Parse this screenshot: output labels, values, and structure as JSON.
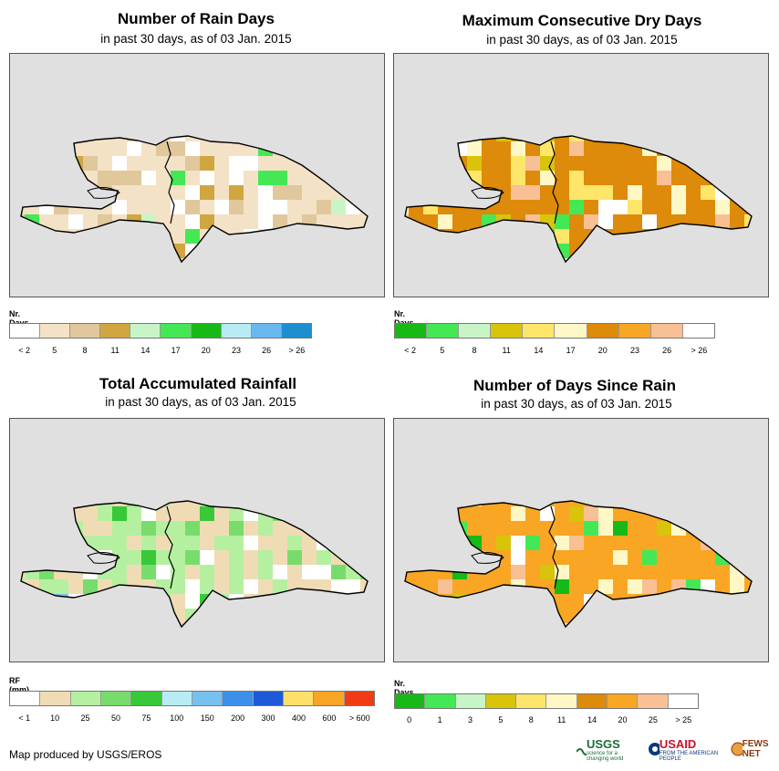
{
  "panels": [
    {
      "title": "Number of Rain Days",
      "subtitle": "in past 30 days, as of 03 Jan. 2015",
      "legend_unit": "Nr. Days",
      "legend_colors": [
        "#ffffff",
        "#f4e2c6",
        "#e0c79c",
        "#d0a640",
        "#c8f5c8",
        "#44e855",
        "#17b917",
        "#b8ecf4",
        "#6ab8f0",
        "#1d8fd0"
      ],
      "legend_labels": [
        "< 2",
        "5",
        "8",
        "11",
        "14",
        "17",
        "20",
        "23",
        "26",
        "> 26"
      ],
      "palette_key": "rain"
    },
    {
      "title": "Maximum Consecutive Dry Days",
      "subtitle": "in past 30 days, as of 03 Jan. 2015",
      "legend_unit": "Nr. Days",
      "legend_colors": [
        "#17b917",
        "#44e855",
        "#c8f5c8",
        "#d8c40a",
        "#fde66a",
        "#fff8c6",
        "#de8a0a",
        "#f8a624",
        "#f8c094",
        "#ffffff"
      ],
      "legend_labels": [
        "< 2",
        "5",
        "8",
        "11",
        "14",
        "17",
        "20",
        "23",
        "26",
        "> 26"
      ],
      "palette_key": "dry"
    },
    {
      "title": "Total Accumulated Rainfall",
      "subtitle": "in past 30 days, as of 03 Jan. 2015",
      "legend_unit": "RF (mm)",
      "legend_colors": [
        "#ffffff",
        "#f0dcb4",
        "#b4f0a0",
        "#78dc6c",
        "#38c838",
        "#b8ecf4",
        "#78c0f0",
        "#3c90e8",
        "#1e5ad8",
        "#fde06a",
        "#f8a424",
        "#f03c14"
      ],
      "legend_labels": [
        "< 1",
        "10",
        "25",
        "50",
        "75",
        "100",
        "150",
        "200",
        "300",
        "400",
        "600",
        "> 600"
      ],
      "palette_key": "rf"
    },
    {
      "title": "Number of Days Since Rain",
      "subtitle": "in past 30 days, as of 03 Jan. 2015",
      "legend_unit": "Nr. Days",
      "legend_colors": [
        "#17b917",
        "#44e855",
        "#c8f5c8",
        "#d8c40a",
        "#fde66a",
        "#fff8c6",
        "#de8a0a",
        "#f8a624",
        "#f8c094",
        "#ffffff"
      ],
      "legend_labels": [
        "0",
        "1",
        "3",
        "5",
        "8",
        "11",
        "14",
        "20",
        "25",
        "> 25"
      ],
      "palette_key": "since"
    }
  ],
  "credit": "Map produced by USGS/EROS",
  "logos": {
    "usgs": "USGS",
    "usgs_tag": "science for a changing world",
    "usaid": "USAID",
    "usaid_tag": "FROM THE AMERICAN PEOPLE",
    "fews": "FEWS NET"
  }
}
